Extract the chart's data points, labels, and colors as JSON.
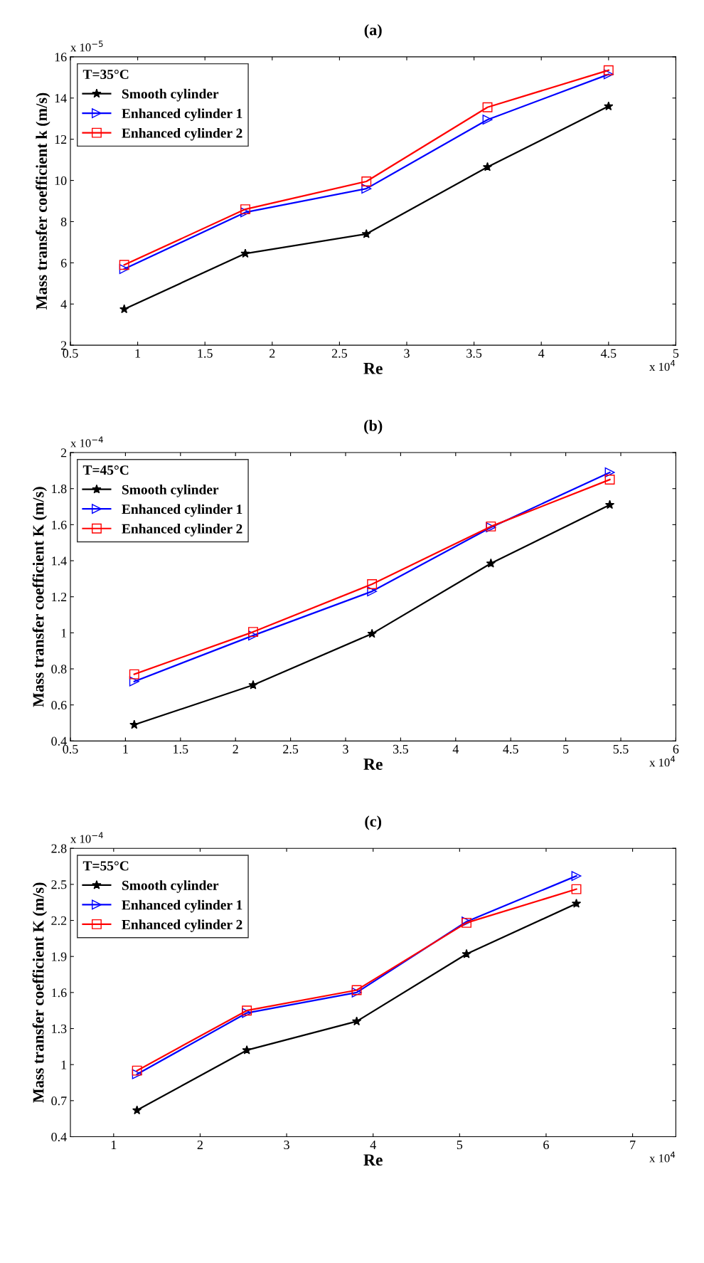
{
  "chart_data": [
    {
      "type": "line",
      "title": "(a)",
      "xlabel": "Re",
      "ylabel": "Mass transfer coefficient k (m/s)",
      "legend_title": "T=35°C",
      "legend": "top left",
      "grid": false,
      "xlim": [
        0.5,
        5
      ],
      "xticks": [
        0.5,
        1,
        1.5,
        2,
        2.5,
        3,
        3.5,
        4,
        4.5,
        5
      ],
      "ylim": [
        2,
        16
      ],
      "yticks": [
        2,
        4,
        6,
        8,
        10,
        12,
        14,
        16
      ],
      "x": [
        0.9,
        1.8,
        2.7,
        3.6,
        4.5
      ],
      "annotations": [
        "x 10$^{−5}$",
        "x 10$^{4}$"
      ],
      "series": [
        {
          "name": "Smooth cylinder",
          "color": "#000000",
          "marker": "star",
          "values": [
            3.75,
            6.45,
            7.4,
            10.65,
            13.6
          ]
        },
        {
          "name": "Enhanced cylinder 1",
          "color": "#0000ff",
          "marker": "triangle",
          "values": [
            5.7,
            8.45,
            9.6,
            12.95,
            15.15
          ]
        },
        {
          "name": "Enhanced cylinder 2",
          "color": "#ff0000",
          "marker": "square",
          "values": [
            5.9,
            8.6,
            9.95,
            13.55,
            15.35
          ]
        }
      ]
    },
    {
      "type": "line",
      "title": "(b)",
      "xlabel": "Re",
      "ylabel": "Mass transfer coefficient K (m/s)",
      "legend_title": "T=45°C",
      "legend": "top left",
      "grid": false,
      "xlim": [
        0.5,
        6
      ],
      "xticks": [
        0.5,
        1,
        1.5,
        2,
        2.5,
        3,
        3.5,
        4,
        4.5,
        5,
        5.5,
        6
      ],
      "ylim": [
        0.4,
        2
      ],
      "yticks": [
        0.4,
        0.6,
        0.8,
        1,
        1.2,
        1.4,
        1.6,
        1.8,
        2
      ],
      "x": [
        1.08,
        2.16,
        3.24,
        4.32,
        5.4
      ],
      "annotations": [
        "x 10$^{−4}$",
        "x 10$^{4}$"
      ],
      "series": [
        {
          "name": "Smooth cylinder",
          "color": "#000000",
          "marker": "star",
          "values": [
            0.49,
            0.71,
            0.995,
            1.385,
            1.71
          ]
        },
        {
          "name": "Enhanced cylinder 1",
          "color": "#0000ff",
          "marker": "triangle",
          "values": [
            0.73,
            0.985,
            1.23,
            1.585,
            1.89
          ]
        },
        {
          "name": "Enhanced cylinder 2",
          "color": "#ff0000",
          "marker": "square",
          "values": [
            0.77,
            1.005,
            1.27,
            1.59,
            1.85
          ]
        }
      ]
    },
    {
      "type": "line",
      "title": "(c)",
      "xlabel": "Re",
      "ylabel": "Mass transfer coefficient K (m/s)",
      "legend_title": "T=55°C",
      "legend": "top left",
      "grid": false,
      "xlim": [
        0.5,
        7.5
      ],
      "xticks": [
        1,
        2,
        3,
        4,
        5,
        6,
        7
      ],
      "ylim": [
        0.4,
        2.8
      ],
      "yticks": [
        0.4,
        0.7,
        1,
        1.3,
        1.6,
        1.9,
        2.2,
        2.5,
        2.8
      ],
      "x": [
        1.27,
        2.54,
        3.81,
        5.08,
        6.35
      ],
      "annotations": [
        "x 10$^{−4}$",
        "x 10$^{4}$"
      ],
      "series": [
        {
          "name": "Smooth cylinder",
          "color": "#000000",
          "marker": "star",
          "values": [
            0.62,
            1.12,
            1.36,
            1.92,
            2.34
          ]
        },
        {
          "name": "Enhanced cylinder 1",
          "color": "#0000ff",
          "marker": "triangle",
          "values": [
            0.92,
            1.43,
            1.6,
            2.19,
            2.57
          ]
        },
        {
          "name": "Enhanced cylinder 2",
          "color": "#ff0000",
          "marker": "square",
          "values": [
            0.95,
            1.45,
            1.62,
            2.18,
            2.46
          ]
        }
      ]
    }
  ]
}
